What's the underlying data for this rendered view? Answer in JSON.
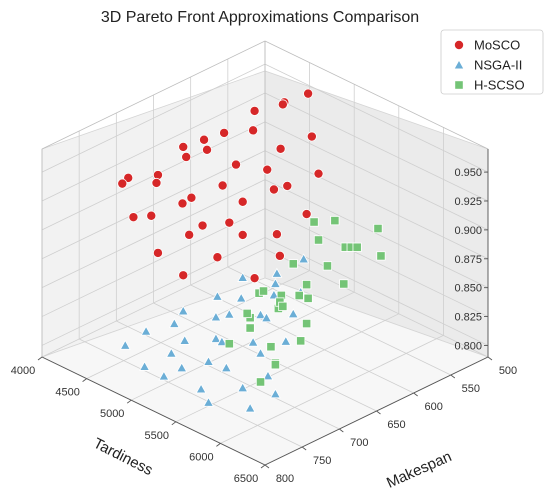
{
  "chart_data": {
    "type": "scatter",
    "title": "3D Pareto Front Approximations Comparison",
    "xlabel": "Makespan",
    "ylabel": "Tardiness",
    "zlabel": "",
    "xlim": [
      500,
      800
    ],
    "ylim": [
      4000,
      6500
    ],
    "zlim": [
      0.79,
      0.97
    ],
    "xticks": [
      500,
      550,
      600,
      650,
      700,
      750,
      800
    ],
    "yticks": [
      4000,
      4500,
      5000,
      5500,
      6000,
      6500
    ],
    "zticks": [
      "0.800",
      "0.825",
      "0.850",
      "0.875",
      "0.900",
      "0.925",
      "0.950"
    ],
    "grid": true,
    "legend_position": "top-right",
    "series": [
      {
        "name": "MoSCO",
        "marker": "circle",
        "color": "#d62728",
        "points": [
          [
            520,
            4650,
            0.955
          ],
          [
            540,
            4550,
            0.95
          ],
          [
            560,
            4700,
            0.96
          ],
          [
            580,
            4550,
            0.955
          ],
          [
            600,
            4700,
            0.95
          ],
          [
            615,
            4500,
            0.945
          ],
          [
            630,
            4400,
            0.94
          ],
          [
            650,
            4600,
            0.945
          ],
          [
            670,
            4500,
            0.95
          ],
          [
            690,
            4700,
            0.955
          ],
          [
            710,
            4550,
            0.94
          ],
          [
            730,
            4700,
            0.945
          ],
          [
            750,
            4550,
            0.95
          ],
          [
            770,
            4650,
            0.955
          ],
          [
            545,
            4900,
            0.935
          ],
          [
            575,
            4800,
            0.93
          ],
          [
            605,
            4900,
            0.925
          ],
          [
            635,
            4800,
            0.935
          ],
          [
            665,
            4900,
            0.93
          ],
          [
            695,
            4800,
            0.925
          ],
          [
            725,
            4950,
            0.935
          ],
          [
            755,
            4850,
            0.93
          ],
          [
            785,
            4900,
            0.94
          ],
          [
            560,
            5100,
            0.915
          ],
          [
            590,
            5000,
            0.91
          ],
          [
            620,
            5100,
            0.92
          ],
          [
            650,
            5000,
            0.915
          ],
          [
            680,
            5100,
            0.91
          ],
          [
            710,
            5050,
            0.915
          ],
          [
            740,
            5150,
            0.92
          ],
          [
            770,
            5050,
            0.91
          ],
          [
            600,
            5300,
            0.9
          ],
          [
            640,
            5300,
            0.895
          ],
          [
            680,
            5250,
            0.905
          ],
          [
            720,
            5300,
            0.9
          ],
          [
            760,
            5250,
            0.895
          ],
          [
            660,
            5500,
            0.89
          ],
          [
            700,
            5550,
            0.885
          ]
        ]
      },
      {
        "name": "NSGA-II",
        "marker": "triangle",
        "color": "#6baed6",
        "points": [
          [
            520,
            4600,
            0.81
          ],
          [
            550,
            4550,
            0.805
          ],
          [
            570,
            4700,
            0.808
          ],
          [
            590,
            4500,
            0.812
          ],
          [
            610,
            4650,
            0.806
          ],
          [
            630,
            4550,
            0.81
          ],
          [
            650,
            4700,
            0.804
          ],
          [
            670,
            4500,
            0.808
          ],
          [
            700,
            4650,
            0.812
          ],
          [
            720,
            4500,
            0.806
          ],
          [
            760,
            4600,
            0.81
          ],
          [
            560,
            4900,
            0.805
          ],
          [
            590,
            4850,
            0.81
          ],
          [
            620,
            4950,
            0.806
          ],
          [
            650,
            4850,
            0.812
          ],
          [
            680,
            4950,
            0.804
          ],
          [
            710,
            4850,
            0.808
          ],
          [
            740,
            4950,
            0.81
          ],
          [
            770,
            4900,
            0.806
          ],
          [
            600,
            5150,
            0.808
          ],
          [
            630,
            5100,
            0.812
          ],
          [
            660,
            5200,
            0.804
          ],
          [
            690,
            5100,
            0.81
          ],
          [
            720,
            5200,
            0.806
          ],
          [
            750,
            5150,
            0.808
          ],
          [
            780,
            5200,
            0.812
          ],
          [
            640,
            5400,
            0.806
          ],
          [
            680,
            5450,
            0.81
          ],
          [
            720,
            5400,
            0.808
          ],
          [
            760,
            5450,
            0.804
          ],
          [
            700,
            5700,
            0.806
          ],
          [
            740,
            5750,
            0.81
          ],
          [
            780,
            5700,
            0.808
          ],
          [
            720,
            5950,
            0.806
          ],
          [
            760,
            6000,
            0.808
          ]
        ]
      },
      {
        "name": "H-SCSO",
        "marker": "square",
        "color": "#74c476",
        "points": [
          [
            790,
            6350,
            0.93
          ],
          [
            760,
            6150,
            0.915
          ],
          [
            790,
            6250,
            0.905
          ],
          [
            730,
            6100,
            0.9
          ],
          [
            770,
            6050,
            0.895
          ],
          [
            700,
            6150,
            0.89
          ],
          [
            720,
            6300,
            0.88
          ],
          [
            800,
            6100,
            0.88
          ],
          [
            740,
            6400,
            0.875
          ],
          [
            780,
            6450,
            0.87
          ],
          [
            800,
            6450,
            0.86
          ],
          [
            650,
            5950,
            0.895
          ],
          [
            690,
            6050,
            0.895
          ],
          [
            640,
            6050,
            0.88
          ],
          [
            710,
            5900,
            0.875
          ],
          [
            670,
            5800,
            0.87
          ],
          [
            620,
            5900,
            0.9
          ],
          [
            600,
            5800,
            0.89
          ],
          [
            580,
            5700,
            0.88
          ],
          [
            620,
            5600,
            0.895
          ],
          [
            560,
            5800,
            0.87
          ],
          [
            540,
            5600,
            0.88
          ],
          [
            660,
            5500,
            0.85
          ],
          [
            700,
            5500,
            0.84
          ],
          [
            590,
            5300,
            0.89
          ],
          [
            550,
            5200,
            0.875
          ],
          [
            680,
            5700,
            0.86
          ],
          [
            720,
            5900,
            0.845
          ],
          [
            750,
            6200,
            0.85
          ],
          [
            630,
            5400,
            0.87
          ]
        ]
      }
    ]
  }
}
